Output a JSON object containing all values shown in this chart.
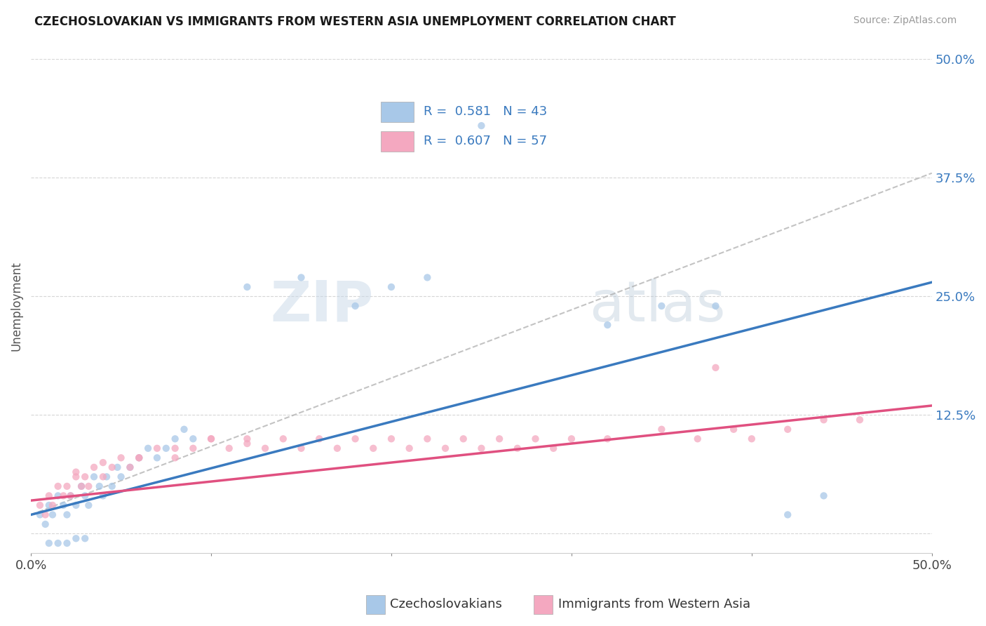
{
  "title": "CZECHOSLOVAKIAN VS IMMIGRANTS FROM WESTERN ASIA UNEMPLOYMENT CORRELATION CHART",
  "source": "Source: ZipAtlas.com",
  "ylabel": "Unemployment",
  "legend_label_1": "Czechoslovakians",
  "legend_label_2": "Immigrants from Western Asia",
  "R1": 0.581,
  "N1": 43,
  "R2": 0.607,
  "N2": 57,
  "color_blue": "#a8c8e8",
  "color_pink": "#f4a8c0",
  "color_blue_line": "#3a7abf",
  "color_pink_line": "#e05080",
  "xmin": 0.0,
  "xmax": 0.5,
  "ymin": -0.02,
  "ymax": 0.5,
  "yticks": [
    0.0,
    0.125,
    0.25,
    0.375,
    0.5
  ],
  "ytick_labels": [
    "",
    "12.5%",
    "25.0%",
    "37.5%",
    "50.0%"
  ],
  "blue_scatter_x": [
    0.005,
    0.008,
    0.01,
    0.012,
    0.015,
    0.018,
    0.02,
    0.022,
    0.025,
    0.028,
    0.03,
    0.032,
    0.035,
    0.038,
    0.04,
    0.042,
    0.045,
    0.048,
    0.05,
    0.055,
    0.06,
    0.065,
    0.07,
    0.075,
    0.08,
    0.085,
    0.09,
    0.01,
    0.015,
    0.02,
    0.025,
    0.03,
    0.12,
    0.15,
    0.18,
    0.2,
    0.22,
    0.25,
    0.32,
    0.35,
    0.38,
    0.42,
    0.44
  ],
  "blue_scatter_y": [
    0.02,
    0.01,
    0.03,
    0.02,
    0.04,
    0.03,
    0.02,
    0.04,
    0.03,
    0.05,
    0.04,
    0.03,
    0.06,
    0.05,
    0.04,
    0.06,
    0.05,
    0.07,
    0.06,
    0.07,
    0.08,
    0.09,
    0.08,
    0.09,
    0.1,
    0.11,
    0.1,
    -0.01,
    -0.01,
    -0.01,
    -0.005,
    -0.005,
    0.26,
    0.27,
    0.24,
    0.26,
    0.27,
    0.43,
    0.22,
    0.24,
    0.24,
    0.02,
    0.04
  ],
  "pink_scatter_x": [
    0.005,
    0.008,
    0.01,
    0.012,
    0.015,
    0.018,
    0.02,
    0.022,
    0.025,
    0.028,
    0.03,
    0.032,
    0.035,
    0.04,
    0.045,
    0.05,
    0.055,
    0.06,
    0.07,
    0.08,
    0.09,
    0.1,
    0.11,
    0.12,
    0.13,
    0.14,
    0.15,
    0.16,
    0.17,
    0.18,
    0.19,
    0.2,
    0.21,
    0.22,
    0.23,
    0.24,
    0.25,
    0.26,
    0.27,
    0.28,
    0.29,
    0.3,
    0.32,
    0.35,
    0.37,
    0.39,
    0.4,
    0.42,
    0.44,
    0.46,
    0.38,
    0.025,
    0.04,
    0.06,
    0.08,
    0.1,
    0.12
  ],
  "pink_scatter_y": [
    0.03,
    0.02,
    0.04,
    0.03,
    0.05,
    0.04,
    0.05,
    0.04,
    0.06,
    0.05,
    0.06,
    0.05,
    0.07,
    0.06,
    0.07,
    0.08,
    0.07,
    0.08,
    0.09,
    0.08,
    0.09,
    0.1,
    0.09,
    0.1,
    0.09,
    0.1,
    0.09,
    0.1,
    0.09,
    0.1,
    0.09,
    0.1,
    0.09,
    0.1,
    0.09,
    0.1,
    0.09,
    0.1,
    0.09,
    0.1,
    0.09,
    0.1,
    0.1,
    0.11,
    0.1,
    0.11,
    0.1,
    0.11,
    0.12,
    0.12,
    0.175,
    0.065,
    0.075,
    0.08,
    0.09,
    0.1,
    0.095
  ],
  "blue_line_x": [
    0.0,
    0.5
  ],
  "blue_line_y": [
    0.02,
    0.265
  ],
  "pink_line_x": [
    0.0,
    0.5
  ],
  "pink_line_y": [
    0.035,
    0.135
  ],
  "dashed_line_x": [
    0.0,
    0.5
  ],
  "dashed_line_y": [
    0.02,
    0.38
  ]
}
